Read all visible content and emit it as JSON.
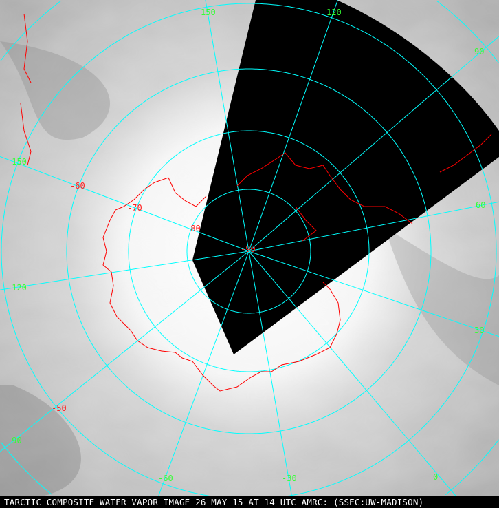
{
  "caption": "TARCTIC COMPOSITE WATER VAPOR IMAGE 26 MAY 15 AT 14 UTC AMRC: (SSEC:UW-MADISON)",
  "colors": {
    "grid": "#00ffff",
    "coastline": "#ff0000",
    "longitude_labels": "#33ff33",
    "latitude_labels": "#ff2020",
    "no_data": "#000000"
  },
  "longitude_labels": [
    "150",
    "120",
    "90",
    "60",
    "30",
    "0",
    "-30",
    "-60",
    "-90",
    "-120",
    "-150"
  ],
  "latitude_labels": [
    "-50",
    "-60",
    "-70",
    "-80",
    "-90"
  ]
}
